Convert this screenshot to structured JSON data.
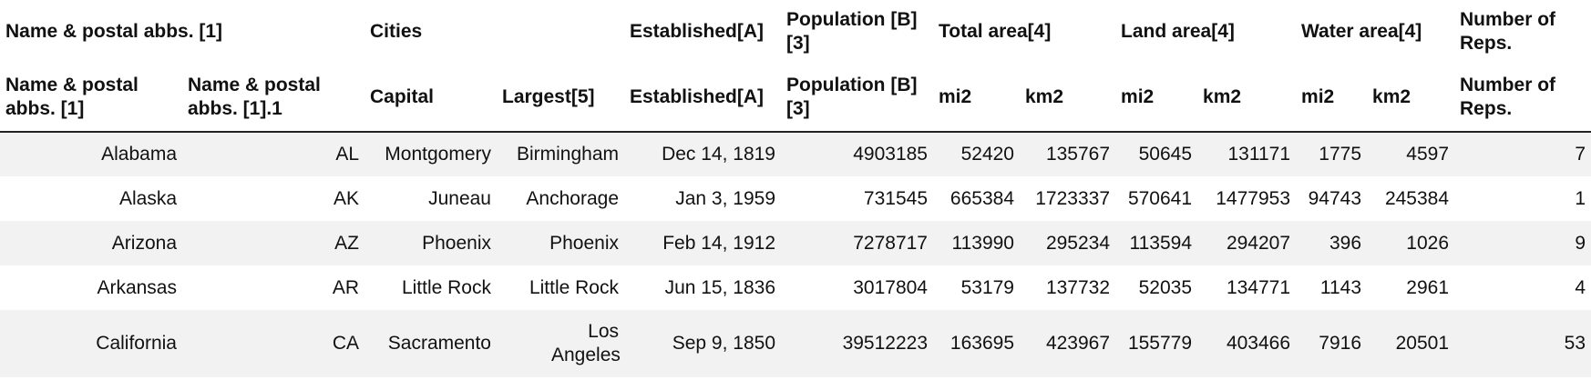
{
  "header_row1": [
    {
      "label": "Name & postal abbs. [1]",
      "colspan": 2
    },
    {
      "label": "Cities",
      "colspan": 2
    },
    {
      "label": "Established[A]",
      "colspan": 1
    },
    {
      "label": "Population [B][3]",
      "colspan": 1
    },
    {
      "label": "Total area[4]",
      "colspan": 2
    },
    {
      "label": "Land area[4]",
      "colspan": 2
    },
    {
      "label": "Water area[4]",
      "colspan": 2
    },
    {
      "label": "Number of Reps.",
      "colspan": 1
    }
  ],
  "header_row2": [
    "Name & postal abbs. [1]",
    "Name & postal abbs. [1].1",
    "Capital",
    "Largest[5]",
    "Established[A]",
    "Population [B][3]",
    "mi2",
    "km2",
    "mi2",
    "km2",
    "mi2",
    "km2",
    "Number of Reps."
  ],
  "rows": [
    [
      "Alabama",
      "AL",
      "Montgomery",
      "Birmingham",
      "Dec 14, 1819",
      "4903185",
      "52420",
      "135767",
      "50645",
      "131171",
      "1775",
      "4597",
      "7"
    ],
    [
      "Alaska",
      "AK",
      "Juneau",
      "Anchorage",
      "Jan 3, 1959",
      "731545",
      "665384",
      "1723337",
      "570641",
      "1477953",
      "94743",
      "245384",
      "1"
    ],
    [
      "Arizona",
      "AZ",
      "Phoenix",
      "Phoenix",
      "Feb 14, 1912",
      "7278717",
      "113990",
      "295234",
      "113594",
      "294207",
      "396",
      "1026",
      "9"
    ],
    [
      "Arkansas",
      "AR",
      "Little Rock",
      "Little Rock",
      "Jun 15, 1836",
      "3017804",
      "53179",
      "137732",
      "52035",
      "134771",
      "1143",
      "2961",
      "4"
    ],
    [
      "California",
      "CA",
      "Sacramento",
      "Los Angeles",
      "Sep 9, 1850",
      "39512223",
      "163695",
      "423967",
      "155779",
      "403466",
      "7916",
      "20501",
      "53"
    ]
  ]
}
